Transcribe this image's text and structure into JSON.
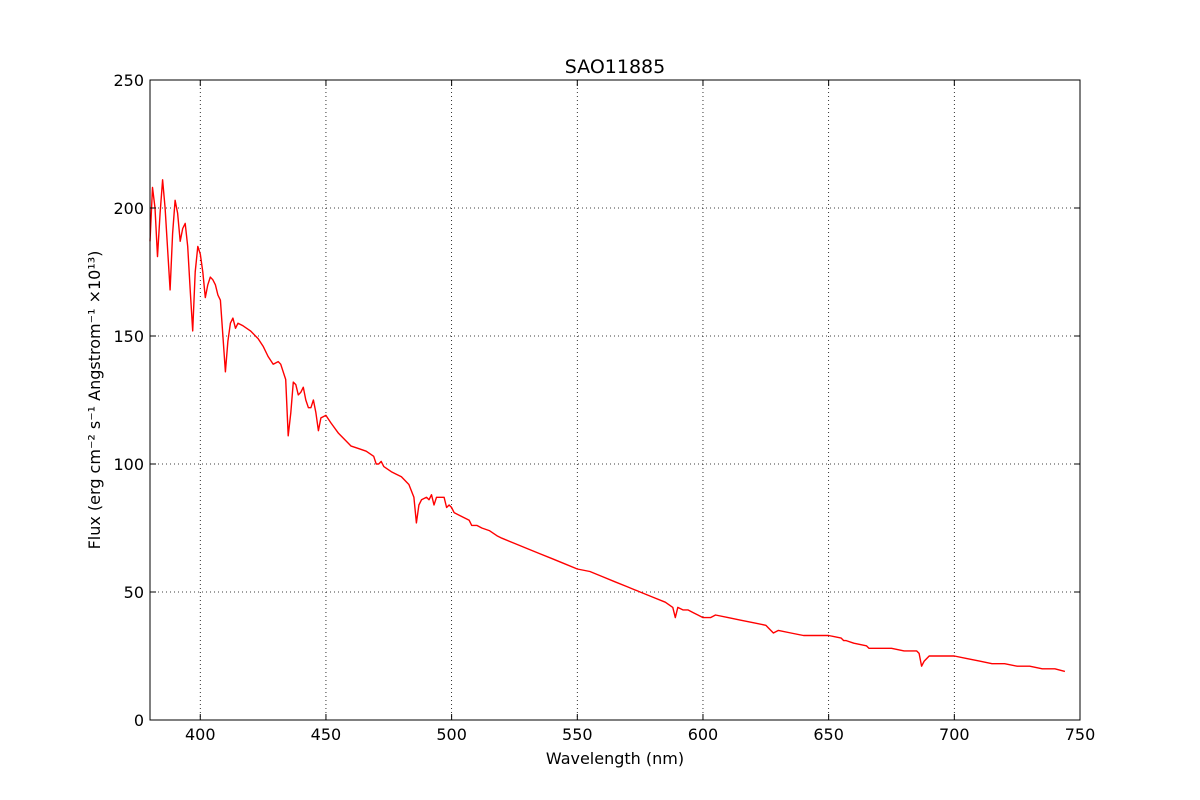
{
  "chart_data": {
    "type": "line",
    "title": "SAO11885",
    "xlabel": "Wavelength (nm)",
    "ylabel": "Flux  (erg cm⁻² s⁻¹  Angstrom⁻¹  ×10¹³)",
    "xlim": [
      380,
      750
    ],
    "ylim": [
      0,
      250
    ],
    "xticks": [
      400,
      450,
      500,
      550,
      600,
      650,
      700,
      750
    ],
    "yticks": [
      0,
      50,
      100,
      150,
      200,
      250
    ],
    "xtick_labels": [
      "400",
      "450",
      "500",
      "550",
      "600",
      "650",
      "700",
      "750"
    ],
    "ytick_labels": [
      "0",
      "50",
      "100",
      "150",
      "200",
      "250"
    ],
    "grid": true,
    "legend": "none",
    "series": [
      {
        "color": "#ff0000",
        "x": [
          380,
          381,
          382,
          383,
          384,
          385,
          386,
          387,
          388,
          389,
          390,
          391,
          392,
          393,
          394,
          395,
          396,
          397,
          398,
          399,
          400,
          401,
          402,
          403,
          404,
          405,
          406,
          407,
          408,
          409,
          410,
          411,
          412,
          413,
          414,
          415,
          417,
          420,
          423,
          425,
          427,
          429,
          431,
          432,
          434,
          435,
          436,
          437,
          438,
          439,
          440,
          441,
          442,
          443,
          444,
          445,
          446,
          447,
          448,
          450,
          452,
          455,
          458,
          460,
          463,
          466,
          469,
          470,
          471,
          472,
          473,
          476,
          478,
          480,
          483,
          485,
          486,
          487,
          488,
          490,
          491,
          492,
          493,
          494,
          495,
          497,
          498,
          499,
          500,
          501,
          503,
          505,
          507,
          508,
          510,
          512,
          515,
          518,
          520,
          525,
          530,
          535,
          540,
          545,
          550,
          555,
          560,
          565,
          570,
          575,
          580,
          585,
          588,
          589,
          590,
          592,
          594,
          596,
          598,
          600,
          603,
          605,
          610,
          615,
          620,
          625,
          627,
          628,
          630,
          635,
          640,
          645,
          650,
          655,
          656,
          657,
          660,
          665,
          666,
          670,
          675,
          680,
          685,
          686,
          687,
          688,
          690,
          695,
          700,
          705,
          710,
          715,
          720,
          725,
          730,
          735,
          740,
          744
        ],
        "y": [
          187,
          208,
          200,
          181,
          198,
          211,
          200,
          184,
          168,
          190,
          203,
          198,
          187,
          192,
          194,
          185,
          168,
          152,
          175,
          185,
          182,
          175,
          165,
          170,
          173,
          172,
          170,
          166,
          164,
          150,
          136,
          148,
          155,
          157,
          153,
          155,
          154,
          152,
          149,
          146,
          142,
          139,
          140,
          139,
          133,
          111,
          120,
          132,
          131,
          127,
          128,
          130,
          125,
          122,
          122,
          125,
          120,
          113,
          118,
          119,
          116,
          112,
          109,
          107,
          106,
          105,
          103,
          100,
          100,
          101,
          99,
          97,
          96,
          95,
          92,
          87,
          77,
          84,
          86,
          87,
          86,
          88,
          84,
          87,
          87,
          87,
          83,
          84,
          83,
          81,
          80,
          79,
          78,
          76,
          76,
          75,
          74,
          72,
          71,
          69,
          67,
          65,
          63,
          61,
          59,
          58,
          56,
          54,
          52,
          50,
          48,
          46,
          44,
          40,
          44,
          43,
          43,
          42,
          41,
          40,
          40,
          41,
          40,
          39,
          38,
          37,
          35,
          34,
          35,
          34,
          33,
          33,
          33,
          32,
          31,
          31,
          30,
          29,
          28,
          28,
          28,
          27,
          27,
          26,
          21,
          23,
          25,
          25,
          25,
          24,
          23,
          22,
          22,
          21,
          21,
          20,
          20,
          19
        ]
      }
    ]
  }
}
